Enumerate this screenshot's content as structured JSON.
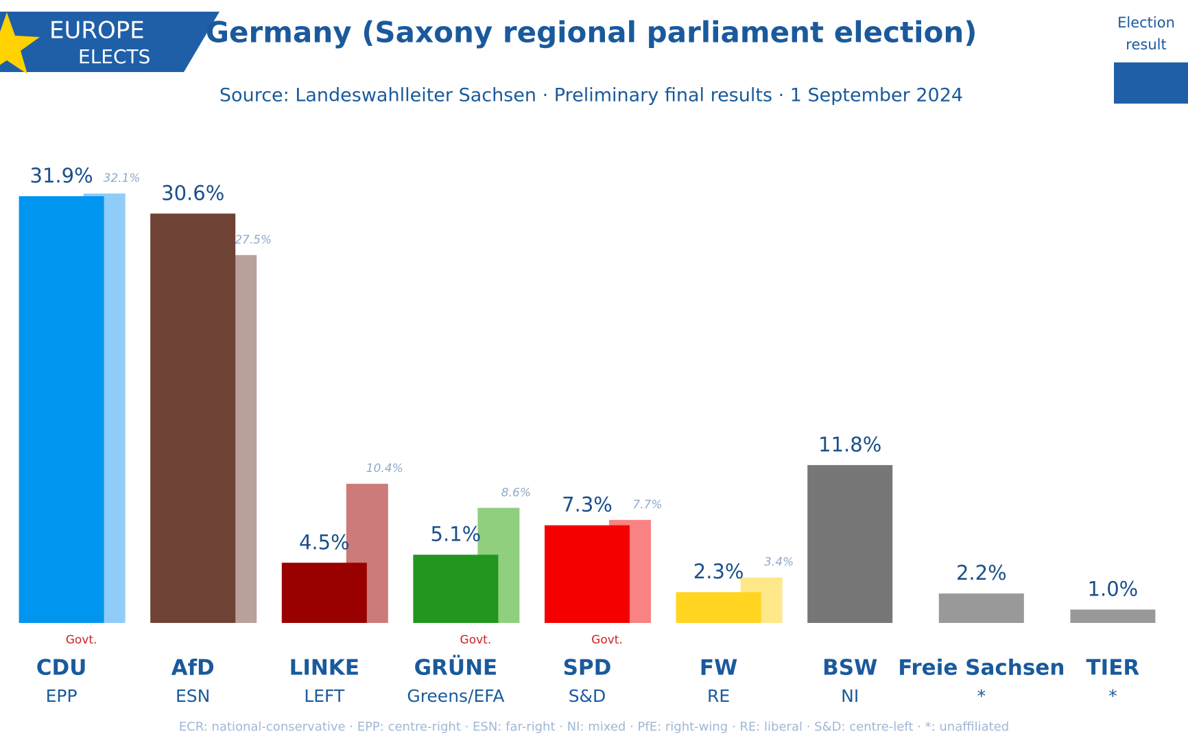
{
  "logo": {
    "line1": "EUROPE",
    "line2": "ELECTS"
  },
  "chart_data": {
    "type": "bar",
    "title": "Germany (Saxony regional parliament election)",
    "subtitle": "Source: Landeswahlleiter Sachsen · Preliminary final results · 1 September 2024",
    "categories": [
      "CDU",
      "AfD",
      "LINKE",
      "GRÜNE",
      "SPD",
      "FW",
      "BSW",
      "Freie Sachsen",
      "TIER"
    ],
    "groups": [
      "EPP",
      "ESN",
      "LEFT",
      "Greens/EFA",
      "S&D",
      "RE",
      "NI",
      "*",
      "*"
    ],
    "annotations": [
      "Govt.",
      null,
      null,
      "Govt.",
      "Govt.",
      null,
      null,
      null,
      null
    ],
    "series": [
      {
        "name": "Election result",
        "colors": [
          "#0096f0",
          "#6f4236",
          "#990000",
          "#22961e",
          "#f40000",
          "#ffd520",
          "#777777",
          "#999999",
          "#999999"
        ],
        "values": [
          31.9,
          30.6,
          4.5,
          5.1,
          7.3,
          2.3,
          11.8,
          2.2,
          1.0
        ],
        "value_labels": [
          "31.9%",
          "30.6%",
          "4.5%",
          "5.1%",
          "7.3%",
          "2.3%",
          "11.8%",
          "2.2%",
          "1.0%"
        ]
      },
      {
        "colors": [
          "#90ccf8",
          "#b9a19b",
          "#cc7a7a",
          "#8fcf7d",
          "#f98282",
          "#ffe88a",
          null,
          null,
          null
        ],
        "values": [
          32.1,
          27.5,
          10.4,
          8.6,
          7.7,
          3.4,
          null,
          null,
          null
        ],
        "value_labels": [
          "32.1%",
          "27.5%",
          "10.4%",
          "8.6%",
          "7.7%",
          "3.4%",
          null,
          null,
          null
        ]
      }
    ],
    "footnote": "ECR: national-conservative · EPP: centre-right · ESN: far-right · NI: mixed · PfE: right-wing · RE: liberal · S&D: centre-left · *: unaffiliated"
  }
}
